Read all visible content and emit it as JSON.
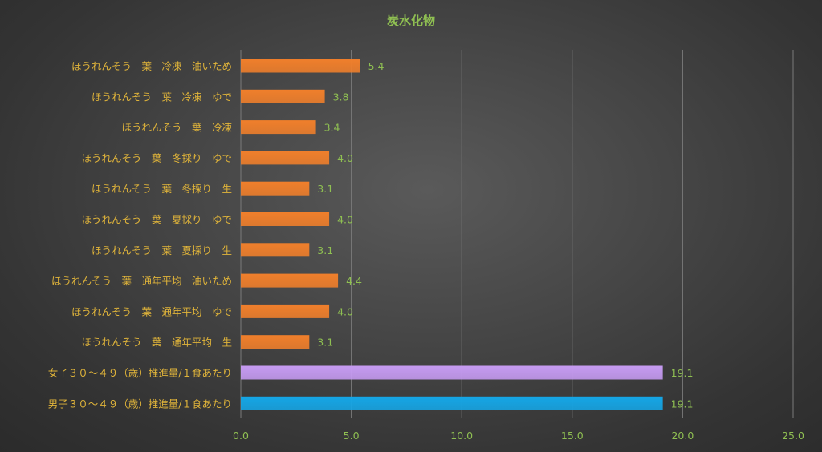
{
  "chart_data": {
    "type": "bar",
    "orientation": "horizontal",
    "title": "炭水化物",
    "xlabel": "",
    "ylabel": "",
    "xlim": [
      0,
      25
    ],
    "ticks": [
      "0.0",
      "5.0",
      "10.0",
      "15.0",
      "20.0",
      "25.0"
    ],
    "grid": true,
    "categories": [
      "ほうれんそう　葉　冷凍　油いため",
      "ほうれんそう　葉　冷凍　ゆで",
      "ほうれんそう　葉　冷凍",
      "ほうれんそう　葉　冬採り　ゆで",
      "ほうれんそう　葉　冬採り　生",
      "ほうれんそう　葉　夏採り　ゆで",
      "ほうれんそう　葉　夏採り　生",
      "ほうれんそう　葉　通年平均　油いため",
      "ほうれんそう　葉　通年平均　ゆで",
      "ほうれんそう　葉　通年平均　生",
      "女子３０～４９（歳）推進量/１食あたり",
      "男子３０～４９（歳）推進量/１食あたり"
    ],
    "values": [
      5.4,
      3.8,
      3.4,
      4.0,
      3.1,
      4.0,
      3.1,
      4.4,
      4.0,
      3.1,
      19.1,
      19.1
    ],
    "value_labels": [
      "5.4",
      "3.8",
      "3.4",
      "4.0",
      "3.1",
      "4.0",
      "3.1",
      "4.4",
      "4.0",
      "3.1",
      "19.1",
      "19.1"
    ],
    "bar_colors": [
      "#f07f2b",
      "#f07f2b",
      "#f07f2b",
      "#f07f2b",
      "#f07f2b",
      "#f07f2b",
      "#f07f2b",
      "#f07f2b",
      "#f07f2b",
      "#f07f2b",
      "#c69bf2",
      "#15a6e6"
    ]
  }
}
